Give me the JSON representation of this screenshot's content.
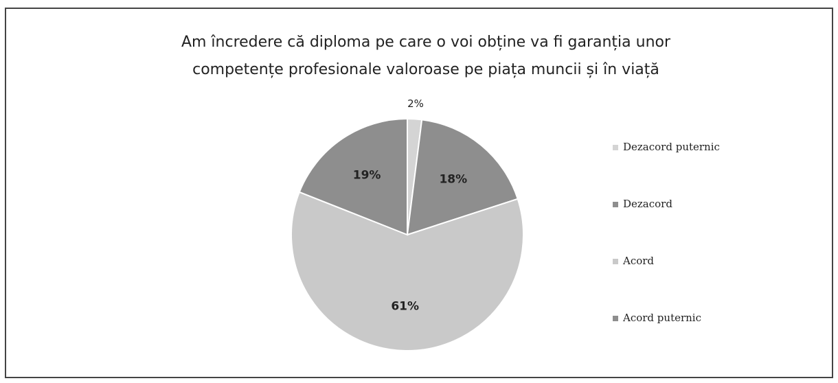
{
  "chart_data": {
    "type": "pie",
    "title": [
      "Am încredere că diploma pe care o voi obține va fi garanția unor",
      "competențe profesionale valoroase pe piața muncii și în viață"
    ],
    "categories": [
      "Dezacord puternic",
      "Dezacord",
      "Acord",
      "Acord puternic"
    ],
    "values": [
      2,
      18,
      61,
      19
    ],
    "value_labels": [
      "2%",
      "18%",
      "61%",
      "19%"
    ],
    "colors": [
      "#d4d4d4",
      "#8e8e8e",
      "#c9c9c9",
      "#8e8e8e"
    ],
    "legend": "right"
  }
}
